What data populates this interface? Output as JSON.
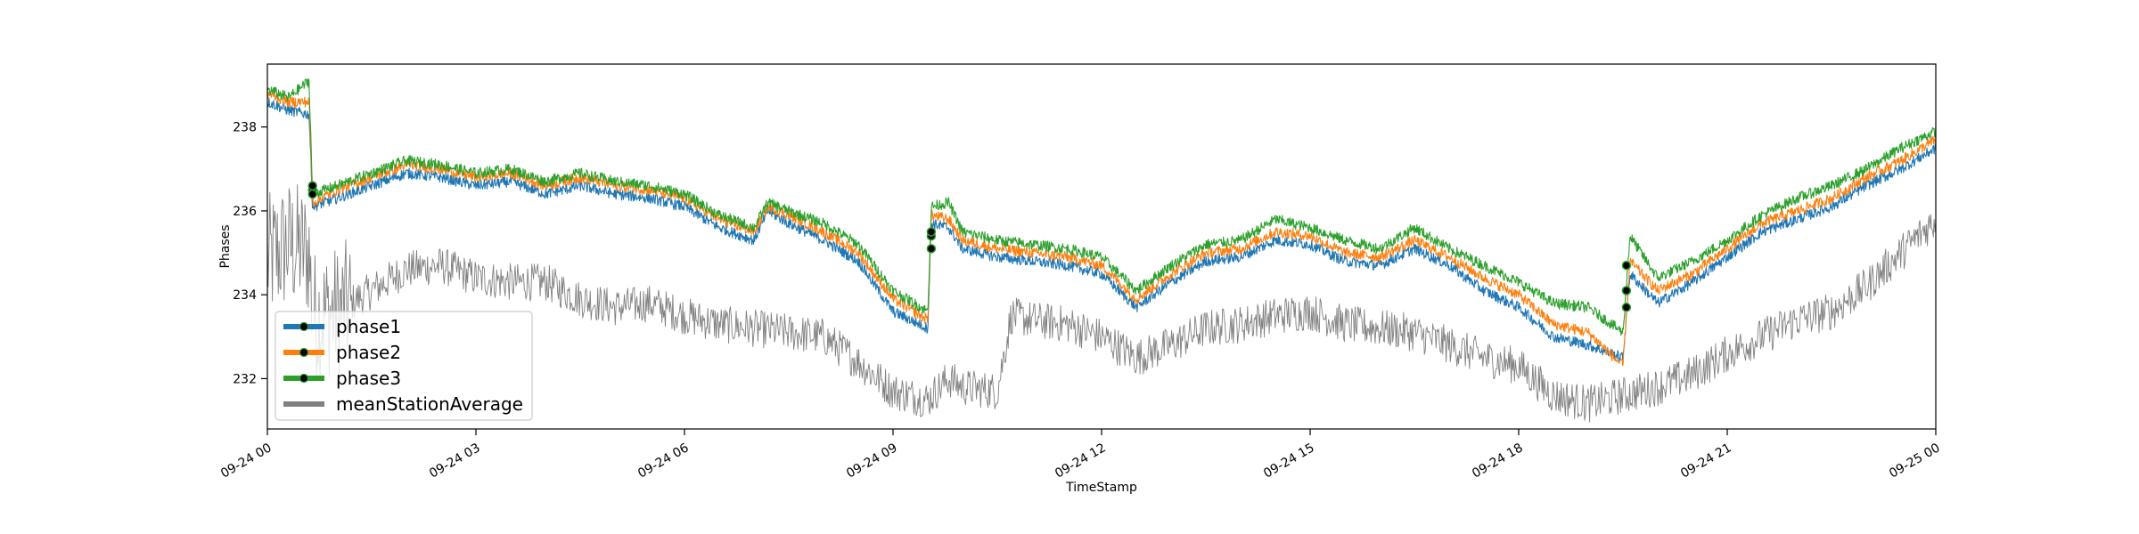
{
  "chart_data": {
    "type": "line",
    "title": "",
    "xlabel": "TimeStamp",
    "ylabel": "Phases",
    "x_range": [
      "2024-09-24T00:00",
      "2024-09-25T00:00"
    ],
    "ylim": [
      230.8,
      239.5
    ],
    "x_ticks": [
      "09-24 00",
      "09-24 03",
      "09-24 06",
      "09-24 09",
      "09-24 12",
      "09-24 15",
      "09-24 18",
      "09-24 21",
      "09-25 00"
    ],
    "x_tick_hours": [
      0,
      3,
      6,
      9,
      12,
      15,
      18,
      21,
      24
    ],
    "y_ticks": [
      232,
      234,
      236,
      238
    ],
    "grid": false,
    "legend_position": "lower-left",
    "series": [
      {
        "name": "phase1",
        "color": "#1f77b4",
        "points": [
          [
            0,
            238.6
          ],
          [
            0.3,
            238.4
          ],
          [
            0.6,
            238.3
          ],
          [
            0.65,
            236.1
          ],
          [
            1,
            236.3
          ],
          [
            1.5,
            236.6
          ],
          [
            2,
            236.9
          ],
          [
            2.5,
            236.8
          ],
          [
            3,
            236.6
          ],
          [
            3.5,
            236.7
          ],
          [
            4,
            236.4
          ],
          [
            4.5,
            236.6
          ],
          [
            5,
            236.4
          ],
          [
            5.5,
            236.3
          ],
          [
            6,
            236.1
          ],
          [
            6.5,
            235.6
          ],
          [
            7,
            235.3
          ],
          [
            7.2,
            236.0
          ],
          [
            7.5,
            235.7
          ],
          [
            8,
            235.3
          ],
          [
            8.5,
            234.8
          ],
          [
            9,
            233.6
          ],
          [
            9.5,
            233.2
          ],
          [
            9.55,
            235.7
          ],
          [
            9.8,
            235.6
          ],
          [
            10,
            235.1
          ],
          [
            10.5,
            234.9
          ],
          [
            11,
            234.8
          ],
          [
            11.5,
            234.7
          ],
          [
            12,
            234.5
          ],
          [
            12.5,
            233.7
          ],
          [
            13,
            234.3
          ],
          [
            13.5,
            234.8
          ],
          [
            14,
            234.9
          ],
          [
            14.5,
            235.3
          ],
          [
            15,
            235.2
          ],
          [
            15.5,
            234.8
          ],
          [
            16,
            234.7
          ],
          [
            16.5,
            235.1
          ],
          [
            17,
            234.7
          ],
          [
            17.5,
            234.1
          ],
          [
            18,
            233.7
          ],
          [
            18.5,
            233.0
          ],
          [
            19,
            232.8
          ],
          [
            19.5,
            232.5
          ],
          [
            19.6,
            234.5
          ],
          [
            20,
            233.8
          ],
          [
            20.5,
            234.3
          ],
          [
            21,
            234.9
          ],
          [
            21.5,
            235.5
          ],
          [
            22,
            235.8
          ],
          [
            22.5,
            236.1
          ],
          [
            23,
            236.6
          ],
          [
            23.5,
            237.0
          ],
          [
            24,
            237.5
          ]
        ]
      },
      {
        "name": "phase2",
        "color": "#ff7f0e",
        "points": [
          [
            0,
            238.8
          ],
          [
            0.3,
            238.6
          ],
          [
            0.6,
            238.6
          ],
          [
            0.65,
            236.2
          ],
          [
            1,
            236.5
          ],
          [
            1.5,
            236.8
          ],
          [
            2,
            237.1
          ],
          [
            2.5,
            237.0
          ],
          [
            3,
            236.8
          ],
          [
            3.5,
            236.9
          ],
          [
            4,
            236.6
          ],
          [
            4.5,
            236.8
          ],
          [
            5,
            236.6
          ],
          [
            5.5,
            236.5
          ],
          [
            6,
            236.3
          ],
          [
            6.5,
            235.8
          ],
          [
            7,
            235.5
          ],
          [
            7.2,
            236.1
          ],
          [
            7.5,
            235.9
          ],
          [
            8,
            235.5
          ],
          [
            8.5,
            235.0
          ],
          [
            9,
            233.9
          ],
          [
            9.5,
            233.4
          ],
          [
            9.55,
            235.9
          ],
          [
            9.8,
            235.8
          ],
          [
            10,
            235.3
          ],
          [
            10.5,
            235.1
          ],
          [
            11,
            235.0
          ],
          [
            11.5,
            234.9
          ],
          [
            12,
            234.7
          ],
          [
            12.5,
            233.9
          ],
          [
            13,
            234.5
          ],
          [
            13.5,
            235.0
          ],
          [
            14,
            235.1
          ],
          [
            14.5,
            235.5
          ],
          [
            15,
            235.4
          ],
          [
            15.5,
            235.0
          ],
          [
            16,
            234.9
          ],
          [
            16.5,
            235.3
          ],
          [
            17,
            234.9
          ],
          [
            17.5,
            234.4
          ],
          [
            18,
            234.0
          ],
          [
            18.5,
            233.3
          ],
          [
            19,
            233.1
          ],
          [
            19.5,
            232.3
          ],
          [
            19.6,
            234.8
          ],
          [
            20,
            234.1
          ],
          [
            20.5,
            234.5
          ],
          [
            21,
            235.1
          ],
          [
            21.5,
            235.7
          ],
          [
            22,
            236.0
          ],
          [
            22.5,
            236.3
          ],
          [
            23,
            236.8
          ],
          [
            23.5,
            237.2
          ],
          [
            24,
            237.7
          ]
        ]
      },
      {
        "name": "phase3",
        "color": "#2ca02c",
        "points": [
          [
            0,
            238.9
          ],
          [
            0.3,
            238.7
          ],
          [
            0.6,
            239.1
          ],
          [
            0.65,
            236.4
          ],
          [
            1,
            236.6
          ],
          [
            1.5,
            236.9
          ],
          [
            2,
            237.2
          ],
          [
            2.5,
            237.1
          ],
          [
            3,
            236.9
          ],
          [
            3.5,
            237.0
          ],
          [
            4,
            236.7
          ],
          [
            4.5,
            236.9
          ],
          [
            5,
            236.7
          ],
          [
            5.5,
            236.6
          ],
          [
            6,
            236.4
          ],
          [
            6.5,
            235.9
          ],
          [
            7,
            235.6
          ],
          [
            7.2,
            236.2
          ],
          [
            7.5,
            236.0
          ],
          [
            8,
            235.7
          ],
          [
            8.5,
            235.2
          ],
          [
            9,
            234.1
          ],
          [
            9.5,
            233.6
          ],
          [
            9.55,
            236.1
          ],
          [
            9.8,
            236.2
          ],
          [
            10,
            235.5
          ],
          [
            10.5,
            235.3
          ],
          [
            11,
            235.2
          ],
          [
            11.5,
            235.1
          ],
          [
            12,
            234.9
          ],
          [
            12.5,
            234.1
          ],
          [
            13,
            234.7
          ],
          [
            13.5,
            235.2
          ],
          [
            14,
            235.3
          ],
          [
            14.5,
            235.8
          ],
          [
            15,
            235.6
          ],
          [
            15.5,
            235.3
          ],
          [
            16,
            235.1
          ],
          [
            16.5,
            235.6
          ],
          [
            17,
            235.1
          ],
          [
            17.5,
            234.7
          ],
          [
            18,
            234.3
          ],
          [
            18.5,
            233.8
          ],
          [
            19,
            233.7
          ],
          [
            19.5,
            233.1
          ],
          [
            19.6,
            235.4
          ],
          [
            20,
            234.4
          ],
          [
            20.5,
            234.8
          ],
          [
            21,
            235.3
          ],
          [
            21.5,
            235.9
          ],
          [
            22,
            236.3
          ],
          [
            22.5,
            236.6
          ],
          [
            23,
            237.0
          ],
          [
            23.5,
            237.5
          ],
          [
            24,
            237.9
          ]
        ]
      },
      {
        "name": "meanStationAverage",
        "color": "#808080",
        "points": [
          [
            0,
            234.8
          ],
          [
            0.3,
            235.2
          ],
          [
            0.6,
            235.0
          ],
          [
            0.65,
            233.5
          ],
          [
            1,
            233.6
          ],
          [
            1.5,
            234.1
          ],
          [
            2,
            234.6
          ],
          [
            2.5,
            234.7
          ],
          [
            3,
            234.4
          ],
          [
            3.5,
            234.3
          ],
          [
            4,
            234.3
          ],
          [
            4.5,
            233.9
          ],
          [
            5,
            233.7
          ],
          [
            5.5,
            233.8
          ],
          [
            6,
            233.5
          ],
          [
            6.5,
            233.3
          ],
          [
            7,
            233.2
          ],
          [
            7.5,
            233.1
          ],
          [
            8,
            233.0
          ],
          [
            8.5,
            232.4
          ],
          [
            9,
            231.7
          ],
          [
            9.5,
            231.5
          ],
          [
            9.8,
            232.0
          ],
          [
            10,
            231.8
          ],
          [
            10.5,
            231.7
          ],
          [
            10.7,
            233.5
          ],
          [
            11,
            233.4
          ],
          [
            11.5,
            233.3
          ],
          [
            12,
            233.0
          ],
          [
            12.5,
            232.5
          ],
          [
            13,
            232.8
          ],
          [
            13.5,
            233.2
          ],
          [
            14,
            233.3
          ],
          [
            14.5,
            233.5
          ],
          [
            15,
            233.6
          ],
          [
            15.5,
            233.3
          ],
          [
            16,
            233.2
          ],
          [
            16.5,
            233.1
          ],
          [
            17,
            232.8
          ],
          [
            17.5,
            232.5
          ],
          [
            18,
            232.3
          ],
          [
            18.5,
            231.6
          ],
          [
            19,
            231.4
          ],
          [
            19.5,
            231.6
          ],
          [
            20,
            231.8
          ],
          [
            20.5,
            232.1
          ],
          [
            21,
            232.6
          ],
          [
            21.5,
            233.0
          ],
          [
            22,
            233.4
          ],
          [
            22.5,
            233.6
          ],
          [
            23,
            234.2
          ],
          [
            23.5,
            235.0
          ],
          [
            24,
            235.8
          ]
        ]
      }
    ],
    "markers": [
      {
        "series": "phase1",
        "x": 0.65,
        "y": 236.5
      },
      {
        "series": "phase2",
        "x": 0.65,
        "y": 236.4
      },
      {
        "series": "phase3",
        "x": 0.65,
        "y": 236.6
      },
      {
        "series": "phase1",
        "x": 9.55,
        "y": 235.1
      },
      {
        "series": "phase2",
        "x": 9.55,
        "y": 235.4
      },
      {
        "series": "phase3",
        "x": 9.55,
        "y": 235.5
      },
      {
        "series": "phase1",
        "x": 19.55,
        "y": 233.7
      },
      {
        "series": "phase2",
        "x": 19.55,
        "y": 234.1
      },
      {
        "series": "phase3",
        "x": 19.55,
        "y": 234.7
      }
    ]
  }
}
